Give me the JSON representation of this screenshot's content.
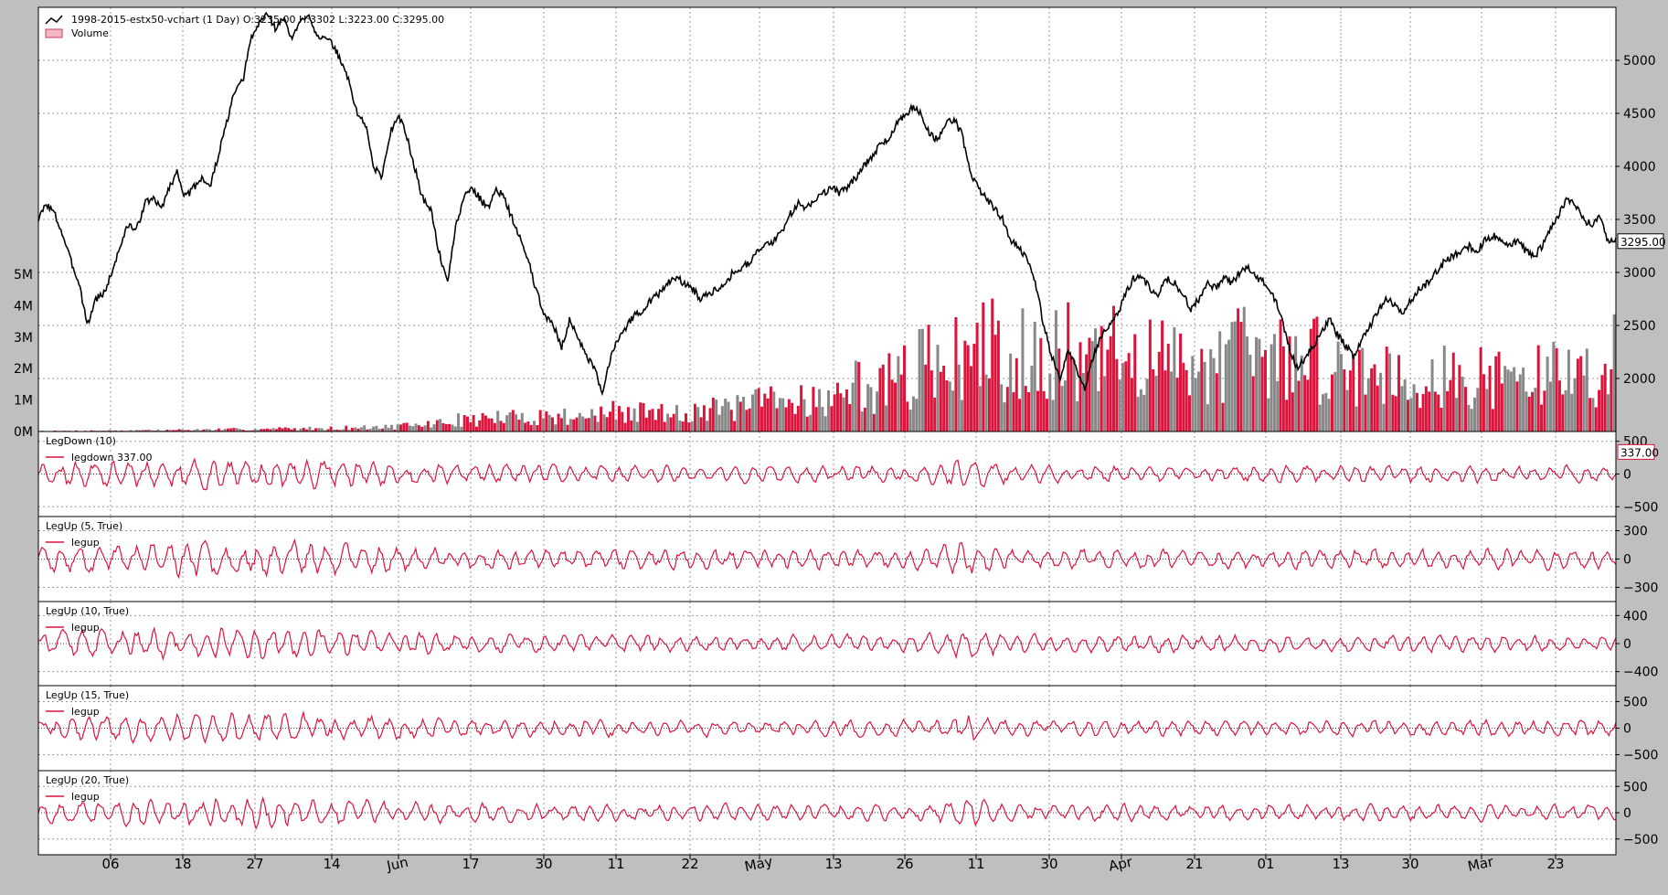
{
  "chart_data": {
    "type": "line",
    "x_tick_labels": [
      "06",
      "18",
      "27",
      "14",
      "Jun",
      "17",
      "30",
      "11",
      "22",
      "May",
      "13",
      "26",
      "11",
      "30",
      "Apr",
      "21",
      "01",
      "13",
      "30",
      "Mar",
      "23"
    ],
    "panels": [
      {
        "id": "price",
        "legend": [
          {
            "label": "1998-2015-estx50-vchart (1 Day) O:3235.00 H:3302 L:3223.00 C:3295.00",
            "icon": "line-icon"
          },
          {
            "label": "Volume",
            "icon": "bar-icon"
          }
        ],
        "right_ticks": [
          "5000",
          "4500",
          "4000",
          "3500",
          "3000",
          "2500",
          "2000"
        ],
        "left_ticks": [
          "5M",
          "4M",
          "3M",
          "2M",
          "1M",
          "0M"
        ],
        "last_value_label": "3295.00",
        "ylim": [
          1500,
          5500
        ],
        "volume_ylim": [
          0,
          5000000
        ],
        "series": [
          {
            "name": "1998-2015-estx50-vchart",
            "color": "#000000",
            "values": [
              3500,
              3650,
              3550,
              3350,
              3100,
              2900,
              2500,
              2750,
              2800,
              3000,
              3250,
              3450,
              3400,
              3650,
              3700,
              3600,
              3800,
              3950,
              3700,
              3800,
              3900,
              3800,
              4100,
              4400,
              4700,
              4800,
              5200,
              5350,
              5450,
              5300,
              5400,
              5200,
              5350,
              5450,
              5250,
              5200,
              5150,
              5000,
              4800,
              4500,
              4400,
              4000,
              3900,
              4300,
              4500,
              4300,
              4000,
              3700,
              3600,
              3200,
              2900,
              3400,
              3700,
              3800,
              3700,
              3600,
              3800,
              3700,
              3500,
              3300,
              3100,
              2800,
              2600,
              2500,
              2300,
              2550,
              2400,
              2200,
              2100,
              1850,
              2200,
              2400,
              2500,
              2600,
              2650,
              2750,
              2800,
              2900,
              2950,
              2900,
              2850,
              2750,
              2800,
              2850,
              2900,
              3000,
              3050,
              3100,
              3200,
              3250,
              3300,
              3400,
              3550,
              3650,
              3600,
              3700,
              3750,
              3800,
              3750,
              3800,
              3900,
              4000,
              4100,
              4200,
              4250,
              4400,
              4500,
              4550,
              4500,
              4300,
              4250,
              4400,
              4450,
              4300,
              3950,
              3800,
              3700,
              3600,
              3500,
              3300,
              3250,
              3100,
              2900,
              2500,
              2200,
              2000,
              2250,
              2100,
              1900,
              2200,
              2400,
              2500,
              2600,
              2800,
              2950,
              2950,
              2850,
              2800,
              2950,
              2900,
              2800,
              2650,
              2750,
              2900,
              2850,
              2950,
              2900,
              3000,
              3050,
              2950,
              2900,
              2800,
              2600,
              2300,
              2100,
              2200,
              2300,
              2450,
              2550,
              2400,
              2300,
              2200,
              2400,
              2500,
              2650,
              2750,
              2700,
              2600,
              2750,
              2850,
              2900,
              3000,
              3100,
              3150,
              3200,
              3250,
              3200,
              3300,
              3350,
              3300,
              3250,
              3300,
              3200,
              3150,
              3250,
              3400,
              3550,
              3700,
              3650,
              3500,
              3450,
              3550,
              3300,
              3295
            ]
          },
          {
            "name": "Volume",
            "colors": [
              "#dc143c",
              "#888888"
            ],
            "values": [
              0.03,
              0.02,
              0.02,
              0.02,
              0.03,
              0.02,
              0.03,
              0.03,
              0.03,
              0.04,
              0.03,
              0.04,
              0.04,
              0.05,
              0.05,
              0.04,
              0.05,
              0.06,
              0.05,
              0.06,
              0.06,
              0.07,
              0.07,
              0.06,
              0.08,
              0.07,
              0.08,
              0.09,
              0.08,
              0.09,
              0.1,
              0.1,
              0.09,
              0.1,
              0.11,
              0.12,
              0.11,
              0.12,
              0.13,
              0.14,
              0.13,
              0.15,
              0.16,
              0.15,
              0.17,
              0.18,
              0.2,
              0.22,
              0.25,
              0.28,
              0.3,
              0.35,
              0.4,
              0.38,
              0.42,
              0.45,
              0.4,
              0.5,
              0.45,
              0.48,
              0.5,
              0.52,
              0.55,
              0.5,
              0.45,
              0.55,
              0.6,
              0.55,
              0.5,
              0.58,
              0.6,
              0.65,
              0.55,
              0.6,
              0.62,
              0.7,
              0.65,
              0.6,
              0.7,
              0.75,
              0.68,
              0.72,
              0.8,
              0.7,
              0.75,
              0.8,
              0.85,
              0.78,
              0.9,
              0.95,
              1.0,
              1.1,
              0.9,
              1.0,
              1.2,
              1.3,
              1.1,
              1.0,
              1.2,
              1.1,
              1.4,
              1.6,
              1.5,
              1.3,
              1.8,
              1.7,
              1.6,
              2.0,
              1.9,
              2.2,
              2.5,
              2.4,
              2.6,
              2.2,
              2.8,
              2.5,
              2.3,
              2.9,
              3.0,
              2.6,
              2.2,
              2.5,
              3.1,
              3.3,
              2.8,
              2.4,
              2.6,
              2.9,
              2.5,
              2.3,
              2.6,
              2.4,
              2.2,
              2.7,
              2.5,
              2.3,
              2.6,
              2.8,
              2.2,
              2.5,
              2.4,
              2.3,
              2.6,
              2.8,
              2.5,
              2.2,
              2.7,
              2.4,
              2.6,
              2.9,
              2.5,
              2.3,
              2.6,
              2.4,
              2.5,
              2.7,
              2.3,
              2.4,
              2.6,
              2.2,
              2.3,
              2.1,
              2.0,
              2.2,
              2.4,
              2.1,
              1.9,
              2.0,
              2.2,
              1.8,
              1.9,
              2.1,
              2.0,
              1.8,
              1.9,
              1.7,
              1.8,
              2.0,
              1.9,
              1.7,
              1.8,
              1.9,
              2.1,
              1.8,
              1.7,
              1.9,
              1.8,
              2.0,
              2.2,
              1.9,
              1.8,
              2.1,
              2.0,
              1.9,
              2.2,
              2.5
            ]
          }
        ]
      },
      {
        "id": "legdown-10",
        "title": "LegDown (10)",
        "legend_label": "legdown 337.00",
        "right_ticks": [
          "500",
          "0",
          "−500"
        ],
        "ylim": [
          -650,
          650
        ],
        "last_value_label": "337.00",
        "series": [
          {
            "name": "legdown",
            "color": "#dc143c",
            "amplitude": 280,
            "seed": 11
          }
        ]
      },
      {
        "id": "legup-5",
        "title": "LegUp (5, True)",
        "legend_label": "legup",
        "right_ticks": [
          "300",
          "0",
          "−300"
        ],
        "ylim": [
          -450,
          450
        ],
        "series": [
          {
            "name": "legup",
            "color": "#dc143c",
            "amplitude": 220,
            "seed": 23
          }
        ]
      },
      {
        "id": "legup-10",
        "title": "LegUp (10, True)",
        "legend_label": "legup",
        "right_ticks": [
          "400",
          "0",
          "−400"
        ],
        "ylim": [
          -600,
          600
        ],
        "series": [
          {
            "name": "legup",
            "color": "#dc143c",
            "amplitude": 260,
            "seed": 37
          }
        ]
      },
      {
        "id": "legup-15",
        "title": "LegUp (15, True)",
        "legend_label": "legup",
        "right_ticks": [
          "500",
          "0",
          "−500"
        ],
        "ylim": [
          -800,
          800
        ],
        "series": [
          {
            "name": "legup",
            "color": "#dc143c",
            "amplitude": 330,
            "seed": 41
          }
        ]
      },
      {
        "id": "legup-20",
        "title": "LegUp (20, True)",
        "legend_label": "legup",
        "right_ticks": [
          "500",
          "0",
          "−500"
        ],
        "ylim": [
          -800,
          800
        ],
        "series": [
          {
            "name": "legup",
            "color": "#dc143c",
            "amplitude": 330,
            "seed": 53
          }
        ]
      }
    ]
  }
}
